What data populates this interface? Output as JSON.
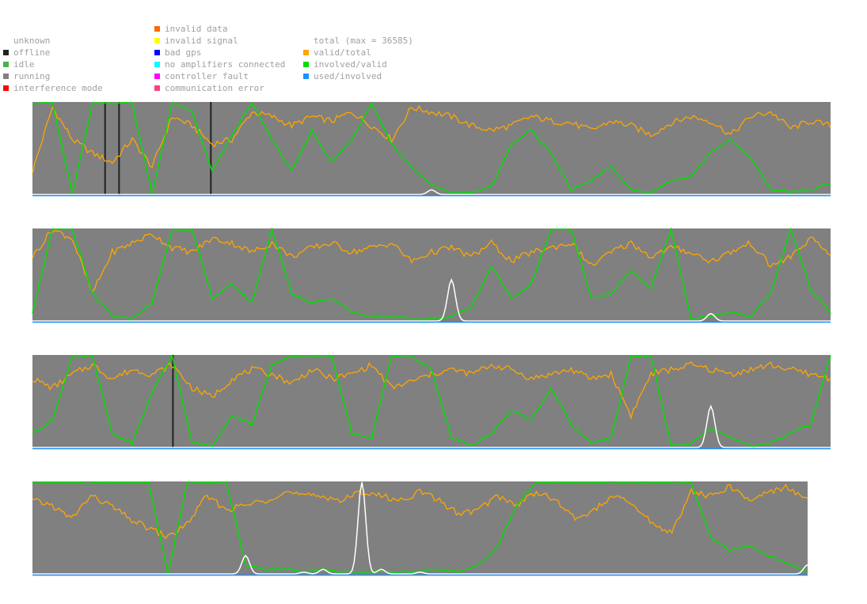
{
  "legend": {
    "status": [
      {
        "label": "unknown",
        "color": ""
      },
      {
        "label": "offline",
        "color": "#222222"
      },
      {
        "label": "idle",
        "color": "#4caf50"
      },
      {
        "label": "running",
        "color": "#808080"
      },
      {
        "label": "interference mode",
        "color": "#ff0000"
      }
    ],
    "errors": [
      {
        "label": "invalid data",
        "color": "#ff6a00"
      },
      {
        "label": "invalid signal",
        "color": "#ffff00"
      },
      {
        "label": "bad gps",
        "color": "#0000ff"
      },
      {
        "label": "no amplifiers connected",
        "color": "#00ffff"
      },
      {
        "label": "controller fault",
        "color": "#ff00ff"
      },
      {
        "label": "communication error",
        "color": "#ff4080"
      }
    ],
    "ratios": [
      {
        "label": "total (max = 36585)",
        "color": ""
      },
      {
        "label": "valid/total",
        "color": "#ffa500"
      },
      {
        "label": "involved/valid",
        "color": "#00e000"
      },
      {
        "label": "used/involved",
        "color": "#1e90ff"
      }
    ]
  },
  "colors": {
    "background": "#808080",
    "total": "#ffffff",
    "valid_total": "#ffa500",
    "involved_valid": "#00e000",
    "used_involved": "#1e90ff",
    "offline_marker": "#222222"
  },
  "chart_data": {
    "type": "line",
    "title": "",
    "max_total": 36585,
    "ylim": [
      0,
      1
    ],
    "points_per_row": 41,
    "rows": [
      {
        "valid_total": [
          0.25,
          0.95,
          0.6,
          0.45,
          0.35,
          0.6,
          0.3,
          0.85,
          0.75,
          0.55,
          0.6,
          0.9,
          0.85,
          0.75,
          0.85,
          0.8,
          0.9,
          0.75,
          0.6,
          0.95,
          0.9,
          0.85,
          0.75,
          0.7,
          0.75,
          0.85,
          0.8,
          0.78,
          0.7,
          0.8,
          0.75,
          0.65,
          0.78,
          0.85,
          0.8,
          0.65,
          0.85,
          0.9,
          0.72,
          0.8,
          0.75
        ],
        "involved_valid": [
          1.0,
          1.0,
          0.0,
          1.0,
          1.0,
          1.0,
          0.0,
          1.0,
          0.9,
          0.25,
          0.65,
          1.0,
          0.6,
          0.25,
          0.7,
          0.35,
          0.6,
          1.0,
          0.55,
          0.3,
          0.1,
          0.02,
          0.02,
          0.08,
          0.55,
          0.7,
          0.45,
          0.05,
          0.15,
          0.3,
          0.05,
          0.02,
          0.15,
          0.2,
          0.45,
          0.6,
          0.4,
          0.05,
          0.02,
          0.05,
          0.12
        ],
        "total": [
          0,
          0,
          0,
          0,
          0,
          0,
          0,
          0,
          0,
          0,
          0,
          0,
          0,
          0,
          0,
          0,
          0,
          0,
          0,
          0,
          0.05,
          0,
          0,
          0,
          0,
          0,
          0,
          0,
          0,
          0,
          0,
          0,
          0,
          0,
          0,
          0,
          0,
          0,
          0,
          0,
          0
        ],
        "used_involved": [
          0,
          0,
          0,
          0,
          0,
          0,
          0,
          0,
          0,
          0,
          0,
          0,
          0,
          0,
          0,
          0,
          0,
          0,
          0,
          0,
          0,
          0,
          0,
          0,
          0,
          0,
          0,
          0,
          0,
          0,
          0,
          0,
          0,
          0,
          0,
          0,
          0,
          0,
          0,
          0,
          0
        ],
        "offline_at": [
          3.6,
          4.3,
          8.9
        ]
      },
      {
        "valid_total": [
          0.7,
          1.0,
          0.9,
          0.3,
          0.75,
          0.85,
          0.95,
          0.8,
          0.75,
          0.9,
          0.85,
          0.75,
          0.85,
          0.7,
          0.8,
          0.85,
          0.75,
          0.8,
          0.85,
          0.65,
          0.75,
          0.8,
          0.7,
          0.85,
          0.65,
          0.75,
          0.8,
          0.85,
          0.6,
          0.75,
          0.85,
          0.7,
          0.8,
          0.75,
          0.65,
          0.75,
          0.85,
          0.6,
          0.7,
          0.9,
          0.72
        ],
        "involved_valid": [
          0.1,
          1.0,
          1.0,
          0.3,
          0.05,
          0.02,
          0.2,
          1.0,
          1.0,
          0.25,
          0.4,
          0.2,
          1.0,
          0.3,
          0.2,
          0.25,
          0.1,
          0.05,
          0.05,
          0.02,
          0.02,
          0.05,
          0.15,
          0.6,
          0.25,
          0.4,
          1.0,
          1.0,
          0.25,
          0.3,
          0.55,
          0.35,
          1.0,
          0.02,
          0.05,
          0.1,
          0.05,
          0.3,
          1.0,
          0.35,
          0.1
        ],
        "total": [
          0,
          0,
          0,
          0,
          0,
          0,
          0,
          0,
          0,
          0,
          0,
          0,
          0,
          0,
          0,
          0,
          0,
          0,
          0,
          0,
          0,
          0.45,
          0,
          0,
          0,
          0,
          0,
          0,
          0,
          0,
          0,
          0,
          0,
          0,
          0.08,
          0,
          0,
          0,
          0,
          0,
          0
        ],
        "used_involved": [
          0,
          0,
          0,
          0,
          0,
          0,
          0,
          0,
          0,
          0,
          0,
          0,
          0,
          0,
          0,
          0,
          0,
          0,
          0,
          0,
          0,
          0,
          0,
          0,
          0,
          0,
          0,
          0,
          0,
          0,
          0,
          0,
          0,
          0,
          0,
          0,
          0,
          0,
          0,
          0,
          0
        ],
        "offline_at": []
      },
      {
        "valid_total": [
          0.75,
          0.65,
          0.8,
          0.9,
          0.75,
          0.85,
          0.8,
          0.9,
          0.65,
          0.55,
          0.75,
          0.85,
          0.8,
          0.7,
          0.85,
          0.75,
          0.8,
          0.9,
          0.65,
          0.72,
          0.8,
          0.85,
          0.8,
          0.9,
          0.85,
          0.75,
          0.8,
          0.85,
          0.75,
          0.8,
          0.35,
          0.8,
          0.85,
          0.9,
          0.85,
          0.8,
          0.85,
          0.9,
          0.85,
          0.8,
          0.75
        ],
        "involved_valid": [
          0.15,
          0.3,
          1.0,
          1.0,
          0.15,
          0.05,
          0.6,
          1.0,
          0.05,
          0.02,
          0.35,
          0.25,
          0.9,
          1.0,
          1.0,
          1.0,
          0.15,
          0.1,
          1.0,
          1.0,
          0.85,
          0.1,
          0.02,
          0.15,
          0.4,
          0.3,
          0.65,
          0.25,
          0.05,
          0.1,
          1.0,
          1.0,
          0.02,
          0.05,
          0.2,
          0.1,
          0.02,
          0.05,
          0.15,
          0.25,
          1.0
        ],
        "total": [
          0,
          0,
          0,
          0,
          0,
          0,
          0,
          0,
          0,
          0,
          0,
          0,
          0,
          0,
          0,
          0,
          0,
          0,
          0,
          0,
          0,
          0,
          0,
          0,
          0,
          0,
          0,
          0,
          0,
          0,
          0,
          0,
          0,
          0,
          0.45,
          0,
          0,
          0,
          0,
          0,
          0
        ],
        "used_involved": [
          0,
          0,
          0,
          0,
          0,
          0,
          0,
          0,
          0,
          0,
          0,
          0,
          0,
          0,
          0,
          0,
          0,
          0,
          0,
          0,
          0,
          0,
          0,
          0,
          0,
          0,
          0,
          0,
          0,
          0,
          0,
          0,
          0,
          0,
          0,
          0,
          0,
          0,
          0,
          0,
          0
        ],
        "offline_at": [
          7.0
        ]
      },
      {
        "valid_total": [
          0.8,
          0.75,
          0.6,
          0.85,
          0.75,
          0.6,
          0.5,
          0.4,
          0.55,
          0.85,
          0.7,
          0.75,
          0.8,
          0.9,
          0.85,
          0.85,
          0.8,
          0.9,
          0.85,
          0.8,
          0.9,
          0.8,
          0.65,
          0.7,
          0.85,
          0.75,
          0.9,
          0.8,
          0.6,
          0.7,
          0.85,
          0.75,
          0.55,
          0.45,
          0.9,
          0.85,
          0.95,
          0.8,
          0.9,
          0.95,
          0.8
        ],
        "involved_valid": [
          1.0,
          1.0,
          1.0,
          1.0,
          1.0,
          1.0,
          1.0,
          0.0,
          1.0,
          1.0,
          1.0,
          0.1,
          0.05,
          0.05,
          0.02,
          0.05,
          0.02,
          0.02,
          0.02,
          0.02,
          0.02,
          0.05,
          0.02,
          0.1,
          0.3,
          0.75,
          1.0,
          1.0,
          1.0,
          1.0,
          1.0,
          1.0,
          1.0,
          1.0,
          1.0,
          0.4,
          0.25,
          0.3,
          0.2,
          0.1,
          0.02
        ],
        "total": [
          0,
          0,
          0,
          0,
          0,
          0,
          0,
          0,
          0,
          0,
          0,
          0.2,
          0,
          0,
          0.02,
          0.05,
          0,
          1.0,
          0.05,
          0,
          0.02,
          0,
          0,
          0,
          0,
          0,
          0,
          0,
          0,
          0,
          0,
          0,
          0,
          0,
          0,
          0,
          0,
          0,
          0,
          0,
          0.1
        ],
        "used_involved": [
          0,
          0,
          0,
          0,
          0,
          0,
          0,
          0,
          0,
          0,
          0,
          0,
          0,
          0,
          0,
          0,
          0,
          0,
          0,
          0,
          0,
          0,
          0,
          0,
          0,
          0,
          0,
          0,
          0,
          0,
          0,
          0,
          0,
          0,
          0,
          0,
          0,
          0,
          0,
          0,
          0
        ],
        "offline_at": []
      }
    ]
  }
}
